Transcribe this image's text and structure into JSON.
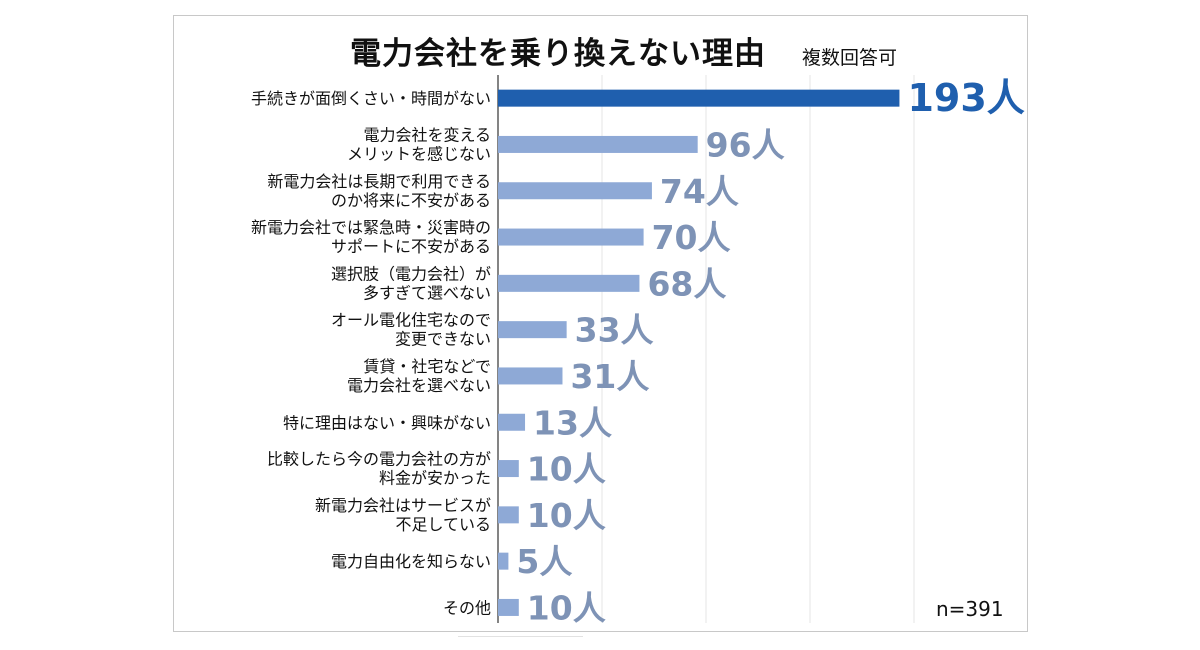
{
  "chart_data": {
    "type": "bar",
    "orientation": "horizontal",
    "title": "電力会社を乗り換えない理由",
    "subtitle": "複数回答可",
    "note": "n=391",
    "unit": "人",
    "categories": [
      [
        "手続きが面倒くさい・時間がない"
      ],
      [
        "電力会社を変える",
        "メリットを感じない"
      ],
      [
        "新電力会社は長期で利用できる",
        "のか将来に不安がある"
      ],
      [
        "新電力会社では緊急時・災害時の",
        "サポートに不安がある"
      ],
      [
        "選択肢（電力会社）が",
        "多すぎて選べない"
      ],
      [
        "オール電化住宅なので",
        "変更できない"
      ],
      [
        "賃貸・社宅などで",
        "電力会社を選べない"
      ],
      [
        "特に理由はない・興味がない"
      ],
      [
        "比較したら今の電力会社の方が",
        "料金が安かった"
      ],
      [
        "新電力会社はサービスが",
        "不足している"
      ],
      [
        "電力自由化を知らない"
      ],
      [
        "その他"
      ]
    ],
    "values": [
      193,
      96,
      74,
      70,
      68,
      33,
      31,
      13,
      10,
      10,
      5,
      10
    ],
    "value_labels": [
      "193人",
      "96人",
      "74人",
      "70人",
      "68人",
      "33人",
      "31人",
      "13人",
      "10人",
      "10人",
      "5人",
      "10人"
    ],
    "xlim": [
      0,
      200
    ],
    "grid": true,
    "highlight_color": "#1f5fae",
    "bar_color": "#8ea9d6",
    "label_color": "#7e93b6"
  }
}
